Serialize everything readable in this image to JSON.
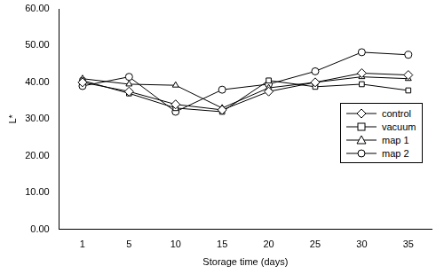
{
  "chart_data": {
    "type": "line",
    "x_label": "Storage time (days)",
    "y_label": "L*",
    "categories": [
      "1",
      "5",
      "10",
      "15",
      "20",
      "25",
      "30",
      "35"
    ],
    "series": [
      {
        "name": "control",
        "color": "#000000",
        "marker": "diamond",
        "values": [
          40,
          37.5,
          34,
          32.5,
          37.5,
          40,
          42.5,
          42
        ]
      },
      {
        "name": "vacuum",
        "color": "#000000",
        "marker": "square",
        "values": [
          40.5,
          37,
          33,
          32,
          40.5,
          38.8,
          39.5,
          37.8
        ]
      },
      {
        "name": "map 1",
        "color": "#000000",
        "marker": "triangle",
        "values": [
          41,
          39.5,
          39.2,
          33,
          38.5,
          40,
          41.5,
          41
        ]
      },
      {
        "name": "map 2",
        "color": "#000000",
        "marker": "circle",
        "values": [
          39,
          41.5,
          32,
          38,
          39.5,
          43,
          48.2,
          47.5
        ]
      }
    ],
    "ylim": [
      0,
      60
    ],
    "yticks": [
      {
        "value": 0,
        "label": "0.00"
      },
      {
        "value": 10,
        "label": "10.00"
      },
      {
        "value": 20,
        "label": "20.00"
      },
      {
        "value": 30,
        "label": "30.00"
      },
      {
        "value": 40,
        "label": "40.00"
      },
      {
        "value": 50,
        "label": "50.00"
      },
      {
        "value": 60,
        "label": "60.00"
      }
    ],
    "grid": false,
    "legend": "lower right"
  }
}
